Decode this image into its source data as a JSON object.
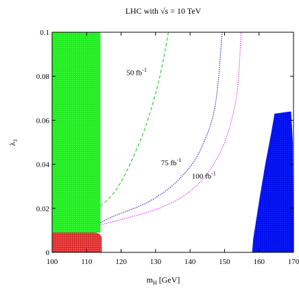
{
  "chart_data": {
    "type": "area",
    "title": "LHC with √s = 10 TeV",
    "xlabel": "m",
    "xlabel_sub": "H",
    "xlabel_unit": " [GeV]",
    "ylabel": "λ",
    "ylabel_sub": "3",
    "xlim": [
      100,
      170
    ],
    "ylim": [
      0,
      0.1
    ],
    "xticks": [
      100,
      110,
      120,
      130,
      140,
      150,
      160,
      170
    ],
    "yticks": [
      0,
      0.02,
      0.04,
      0.06,
      0.08,
      0.1
    ],
    "ytick_labels": [
      "0",
      "0.02",
      "0.04",
      "0.06",
      "0.08",
      "0.1"
    ],
    "grid": false,
    "colors": {
      "green_region": "#22ee22",
      "red_region": "#ee3333",
      "blue_region": "#0010ee",
      "curve_50": "#22cc22",
      "curve_75": "#1a1acc",
      "curve_100": "#dd33dd"
    },
    "regions": [
      {
        "id": "excluded-green",
        "color": "#22ee22",
        "x_range": [
          100,
          114
        ],
        "y_range": [
          0.009,
          0.1
        ]
      },
      {
        "id": "excluded-red",
        "color": "#ee3333",
        "x_range": [
          100,
          114
        ],
        "y_range": [
          0,
          0.009
        ]
      },
      {
        "id": "excluded-blue",
        "color": "#0010ee",
        "boundary": [
          [
            158,
            0
          ],
          [
            158.3,
            0.006
          ],
          [
            159,
            0.013
          ],
          [
            160.2,
            0.025
          ],
          [
            161.8,
            0.04
          ],
          [
            163.5,
            0.054
          ],
          [
            164.5,
            0.063
          ],
          [
            169.3,
            0.064
          ],
          [
            169.8,
            0.05
          ],
          [
            169.9,
            0.02
          ],
          [
            169.9,
            0
          ]
        ]
      }
    ],
    "series": [
      {
        "label": "50 fb",
        "label_sup": "-1",
        "color": "#22cc22",
        "style": "dashed",
        "x": [
          114,
          116.5,
          119,
          121.5,
          124,
          126.5,
          128.5,
          130.5,
          131.8,
          132.8,
          133.7
        ],
        "y": [
          0.021,
          0.0245,
          0.0295,
          0.0365,
          0.045,
          0.0545,
          0.064,
          0.075,
          0.084,
          0.092,
          0.1
        ]
      },
      {
        "label": "75 fb",
        "label_sup": "-1",
        "color": "#1a1acc",
        "style": "dotted",
        "x": [
          114,
          118,
          123,
          128,
          133,
          137,
          141,
          144,
          146.5,
          148,
          149.3
        ],
        "y": [
          0.0135,
          0.0165,
          0.0195,
          0.023,
          0.028,
          0.0335,
          0.041,
          0.05,
          0.061,
          0.075,
          0.1
        ]
      },
      {
        "label": "100 fb",
        "label_sup": "-1",
        "color": "#dd33dd",
        "style": "dotted",
        "x": [
          114,
          119,
          125,
          131,
          137,
          142,
          146,
          149.5,
          152,
          153.8,
          154.8
        ],
        "y": [
          0.0125,
          0.0145,
          0.017,
          0.02,
          0.0245,
          0.0305,
          0.038,
          0.048,
          0.06,
          0.075,
          0.1
        ]
      }
    ],
    "annotations": [
      {
        "text": "50 fb",
        "sup": "-1",
        "x": 124.5,
        "y": 0.0805
      },
      {
        "text": "75 fb",
        "sup": "-1",
        "x": 134.5,
        "y": 0.0395
      },
      {
        "text": "100 fb",
        "sup": "-1",
        "x": 144,
        "y": 0.0335
      }
    ]
  }
}
